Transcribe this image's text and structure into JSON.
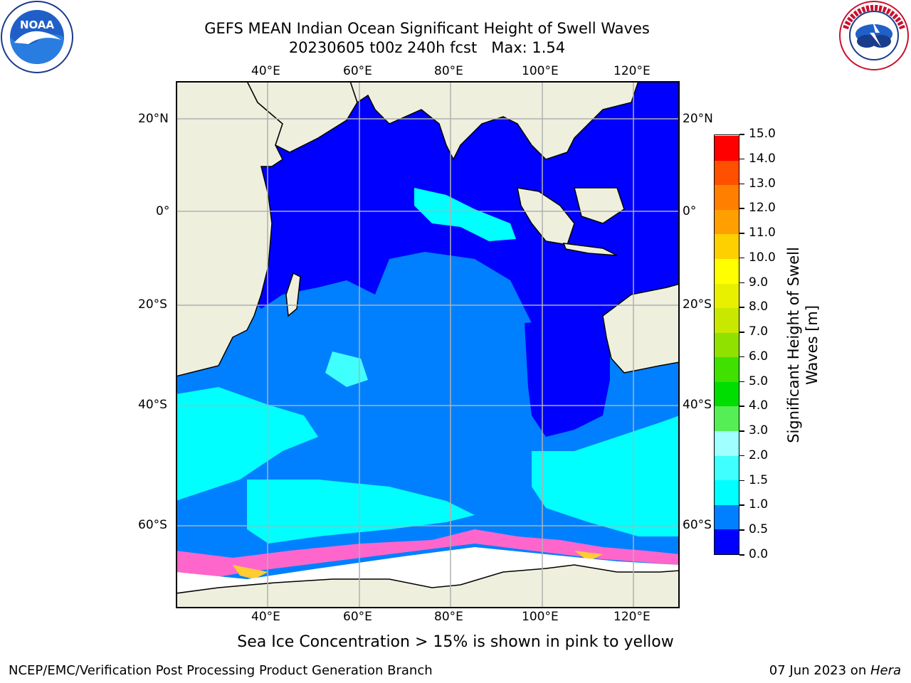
{
  "title_line1": "GEFS MEAN Indian Ocean Significant Height of Swell Waves",
  "title_line2": "20230605 t00z 240h fcst   Max: 1.54",
  "map": {
    "lon_ticks_top": [
      "40°E",
      "60°E",
      "80°E",
      "100°E",
      "120°E"
    ],
    "lon_ticks_bottom": [
      "40°E",
      "60°E",
      "80°E",
      "100°E",
      "120°E"
    ],
    "lat_ticks_left": [
      "20°N",
      "0°",
      "20°S",
      "40°S",
      "60°S"
    ],
    "lat_ticks_right": [
      "20°N",
      "0°",
      "20°S",
      "40°S",
      "60°S"
    ],
    "lon_range": [
      20,
      130
    ],
    "lat_range": [
      -72,
      25
    ]
  },
  "colorbar": {
    "label_line1": "Significant Height of Swell",
    "label_line2": "Waves [m]",
    "ticks": [
      "0.0",
      "0.5",
      "1.0",
      "1.5",
      "2.0",
      "3.0",
      "4.0",
      "5.0",
      "6.0",
      "7.0",
      "8.0",
      "9.0",
      "10.0",
      "11.0",
      "12.0",
      "13.0",
      "14.0",
      "15.0"
    ],
    "colors": [
      "#0000ff",
      "#0080ff",
      "#00ffff",
      "#40ffff",
      "#a0ffff",
      "#55ee55",
      "#00dd00",
      "#40e000",
      "#90e000",
      "#c8e800",
      "#e8f000",
      "#ffff00",
      "#ffd000",
      "#ffa000",
      "#ff8000",
      "#ff5000",
      "#ff0000"
    ]
  },
  "caption": "Sea Ice Concentration > 15% is shown in pink to yellow",
  "footer_left": "NCEP/EMC/Verification Post Processing Product Generation Branch",
  "footer_right_prefix": "07 Jun 2023 on ",
  "footer_right_host": "Hera",
  "logos": {
    "left_text": "NOAA",
    "right_text": "NATIONAL WEATHER SERVICE"
  }
}
